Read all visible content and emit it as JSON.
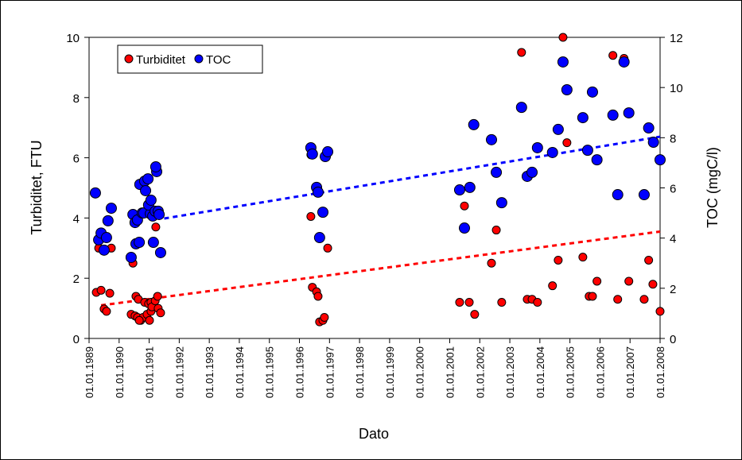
{
  "chart_data": {
    "type": "scatter",
    "xlabel": "Dato",
    "ylabel": "Turbiditet, FTU",
    "y2label": "TOC (mgC/l)",
    "xlim": [
      1989,
      2008
    ],
    "xticks": [
      {
        "value": 1989,
        "label": "01.01.1989"
      },
      {
        "value": 1990,
        "label": "01.01.1990"
      },
      {
        "value": 1991,
        "label": "01.01.1991"
      },
      {
        "value": 1992,
        "label": "01.01.1992"
      },
      {
        "value": 1993,
        "label": "01.01.1993"
      },
      {
        "value": 1994,
        "label": "01.01.1994"
      },
      {
        "value": 1995,
        "label": "01.01.1995"
      },
      {
        "value": 1996,
        "label": "01.01.1996"
      },
      {
        "value": 1997,
        "label": "01.01.1997"
      },
      {
        "value": 1998,
        "label": "01.01.1998"
      },
      {
        "value": 1999,
        "label": "01.01.1999"
      },
      {
        "value": 2000,
        "label": "01.01.2000"
      },
      {
        "value": 2001,
        "label": "01.01.2001"
      },
      {
        "value": 2002,
        "label": "01.01.2002"
      },
      {
        "value": 2003,
        "label": "01.01.2003"
      },
      {
        "value": 2004,
        "label": "01.01.2004"
      },
      {
        "value": 2005,
        "label": "01.01.2005"
      },
      {
        "value": 2006,
        "label": "01.01.2006"
      },
      {
        "value": 2007,
        "label": "01.01.2007"
      },
      {
        "value": 2008,
        "label": "01.01.2008"
      }
    ],
    "ylim": [
      0,
      10
    ],
    "yticks": [
      0,
      2,
      4,
      6,
      8,
      10
    ],
    "y2lim": [
      0,
      12
    ],
    "y2ticks": [
      0,
      2,
      4,
      6,
      8,
      10,
      12
    ],
    "legend": "top-left",
    "series": [
      {
        "name": "Turbiditet",
        "color": "#ff0000",
        "x": [
          1989.24,
          1989.4,
          1989.32,
          1989.5,
          1989.58,
          1989.69,
          1989.74,
          1990.46,
          1990.4,
          1990.53,
          1990.56,
          1990.64,
          1990.61,
          1990.72,
          1990.8,
          1990.85,
          1990.93,
          1990.98,
          1991.06,
          1991.06,
          1991.09,
          1991.2,
          1991.28,
          1991.22,
          1991.3,
          1991.38,
          1991.01,
          1990.67,
          1996.38,
          1996.38,
          1996.43,
          1996.57,
          1996.62,
          1996.67,
          1996.78,
          1996.83,
          1996.94,
          2001.33,
          2001.49,
          2001.65,
          2001.83,
          2002.39,
          2002.55,
          2002.73,
          2003.39,
          2003.58,
          2003.74,
          2003.92,
          2004.42,
          2004.61,
          2004.77,
          2004.9,
          2005.43,
          2005.64,
          2005.75,
          2005.9,
          2006.43,
          2006.59,
          2006.8,
          2006.96,
          2007.47,
          2007.62,
          2007.76,
          2008.0
        ],
        "values": [
          1.53,
          1.6,
          3.0,
          0.98,
          0.9,
          1.5,
          3.0,
          2.5,
          0.8,
          0.75,
          1.4,
          1.3,
          0.7,
          0.6,
          0.7,
          1.2,
          0.8,
          1.15,
          0.9,
          1.2,
          1.05,
          1.25,
          1.4,
          3.7,
          1.0,
          0.85,
          0.6,
          0.6,
          6.1,
          4.05,
          1.7,
          1.55,
          1.4,
          0.55,
          0.6,
          0.7,
          3.0,
          1.2,
          4.4,
          1.2,
          0.8,
          2.5,
          3.6,
          1.2,
          9.5,
          1.3,
          1.3,
          1.2,
          1.75,
          2.6,
          10.0,
          6.5,
          2.7,
          1.4,
          1.4,
          1.9,
          9.4,
          1.3,
          9.3,
          1.9,
          1.3,
          2.6,
          1.8,
          0.9
        ]
      },
      {
        "name": "TOC",
        "color": "#0000ff",
        "axis": "y2",
        "x": [
          1989.21,
          1989.32,
          1989.4,
          1989.5,
          1989.58,
          1989.63,
          1989.74,
          1990.4,
          1990.46,
          1990.53,
          1990.56,
          1990.61,
          1990.67,
          1990.69,
          1990.77,
          1990.82,
          1990.85,
          1990.88,
          1990.96,
          1991.04,
          1990.98,
          1991.06,
          1991.12,
          1991.14,
          1991.2,
          1991.25,
          1991.22,
          1991.3,
          1991.33,
          1991.38,
          1996.38,
          1996.43,
          1996.57,
          1996.62,
          1996.67,
          1996.78,
          1996.86,
          1996.94,
          2001.33,
          2001.49,
          2001.67,
          2001.8,
          2002.39,
          2002.55,
          2002.73,
          2003.39,
          2003.58,
          2003.74,
          2003.92,
          2004.42,
          2004.61,
          2004.77,
          2004.9,
          2005.43,
          2005.59,
          2005.75,
          2005.9,
          2006.43,
          2006.59,
          2006.8,
          2006.96,
          2007.47,
          2007.62,
          2007.78,
          2008.0
        ],
        "values": [
          5.8,
          3.93,
          4.2,
          3.52,
          4.02,
          4.69,
          5.19,
          3.23,
          4.94,
          4.62,
          3.77,
          4.72,
          3.83,
          6.14,
          5.0,
          5.0,
          6.27,
          5.89,
          6.36,
          4.97,
          5.32,
          5.51,
          4.88,
          3.83,
          5.07,
          6.65,
          6.84,
          5.07,
          4.94,
          3.42,
          7.6,
          7.35,
          6.02,
          5.83,
          4.02,
          5.03,
          7.25,
          7.44,
          5.92,
          4.4,
          6.02,
          8.52,
          7.92,
          6.62,
          5.41,
          9.21,
          6.46,
          6.62,
          7.6,
          7.41,
          8.33,
          11.02,
          9.91,
          8.8,
          7.5,
          9.82,
          7.12,
          8.9,
          5.73,
          11.02,
          8.99,
          5.73,
          8.39,
          7.82,
          7.12
        ]
      }
    ],
    "trendlines": [
      {
        "color": "#ff0000",
        "x": [
          1989.4,
          2008
        ],
        "values": [
          1.1,
          3.55
        ]
      },
      {
        "color": "#0000ff",
        "axis": "y2",
        "x": [
          1991.5,
          2008
        ],
        "values": [
          4.78,
          8.04
        ]
      }
    ]
  }
}
